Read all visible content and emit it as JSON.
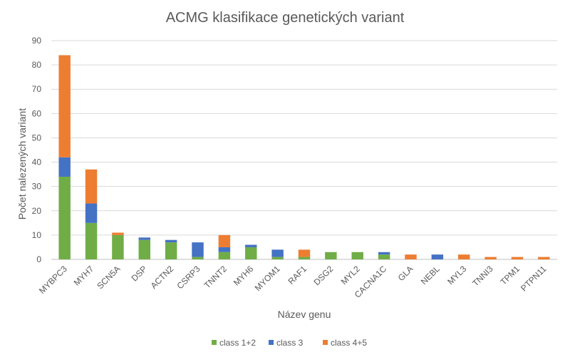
{
  "chart_data": {
    "type": "bar",
    "stacked": true,
    "title": "ACMG klasifikace genetických variant",
    "xlabel": "Název genu",
    "ylabel": "Počet nalezených variant",
    "ylim": [
      0,
      90
    ],
    "yticks": [
      0,
      10,
      20,
      30,
      40,
      50,
      60,
      70,
      80,
      90
    ],
    "grid": true,
    "legend_position": "bottom",
    "categories": [
      "MYBPC3",
      "MYH7",
      "SCN5A",
      "DSP",
      "ACTN2",
      "CSRP3",
      "TNNT2",
      "MYH6",
      "MYOM1",
      "RAF1",
      "DSG2",
      "MYL2",
      "CACNA1C",
      "GLA",
      "NEBL",
      "MYL3",
      "TNNI3",
      "TPM1",
      "PTPN11"
    ],
    "series": [
      {
        "name": "class 1+2",
        "color": "#70ad47",
        "values": [
          34,
          15,
          10,
          8,
          7,
          1,
          3,
          5,
          1,
          1,
          3,
          3,
          2,
          0,
          0,
          0,
          0,
          0,
          0
        ]
      },
      {
        "name": "class 3",
        "color": "#4472c4",
        "values": [
          8,
          8,
          0,
          1,
          1,
          6,
          2,
          1,
          3,
          0,
          0,
          0,
          1,
          0,
          2,
          0,
          0,
          0,
          0
        ]
      },
      {
        "name": "class 4+5",
        "color": "#ed7d31",
        "values": [
          42,
          14,
          1,
          0,
          0,
          0,
          5,
          0,
          0,
          3,
          0,
          0,
          0,
          2,
          0,
          2,
          1,
          1,
          1
        ]
      }
    ]
  }
}
